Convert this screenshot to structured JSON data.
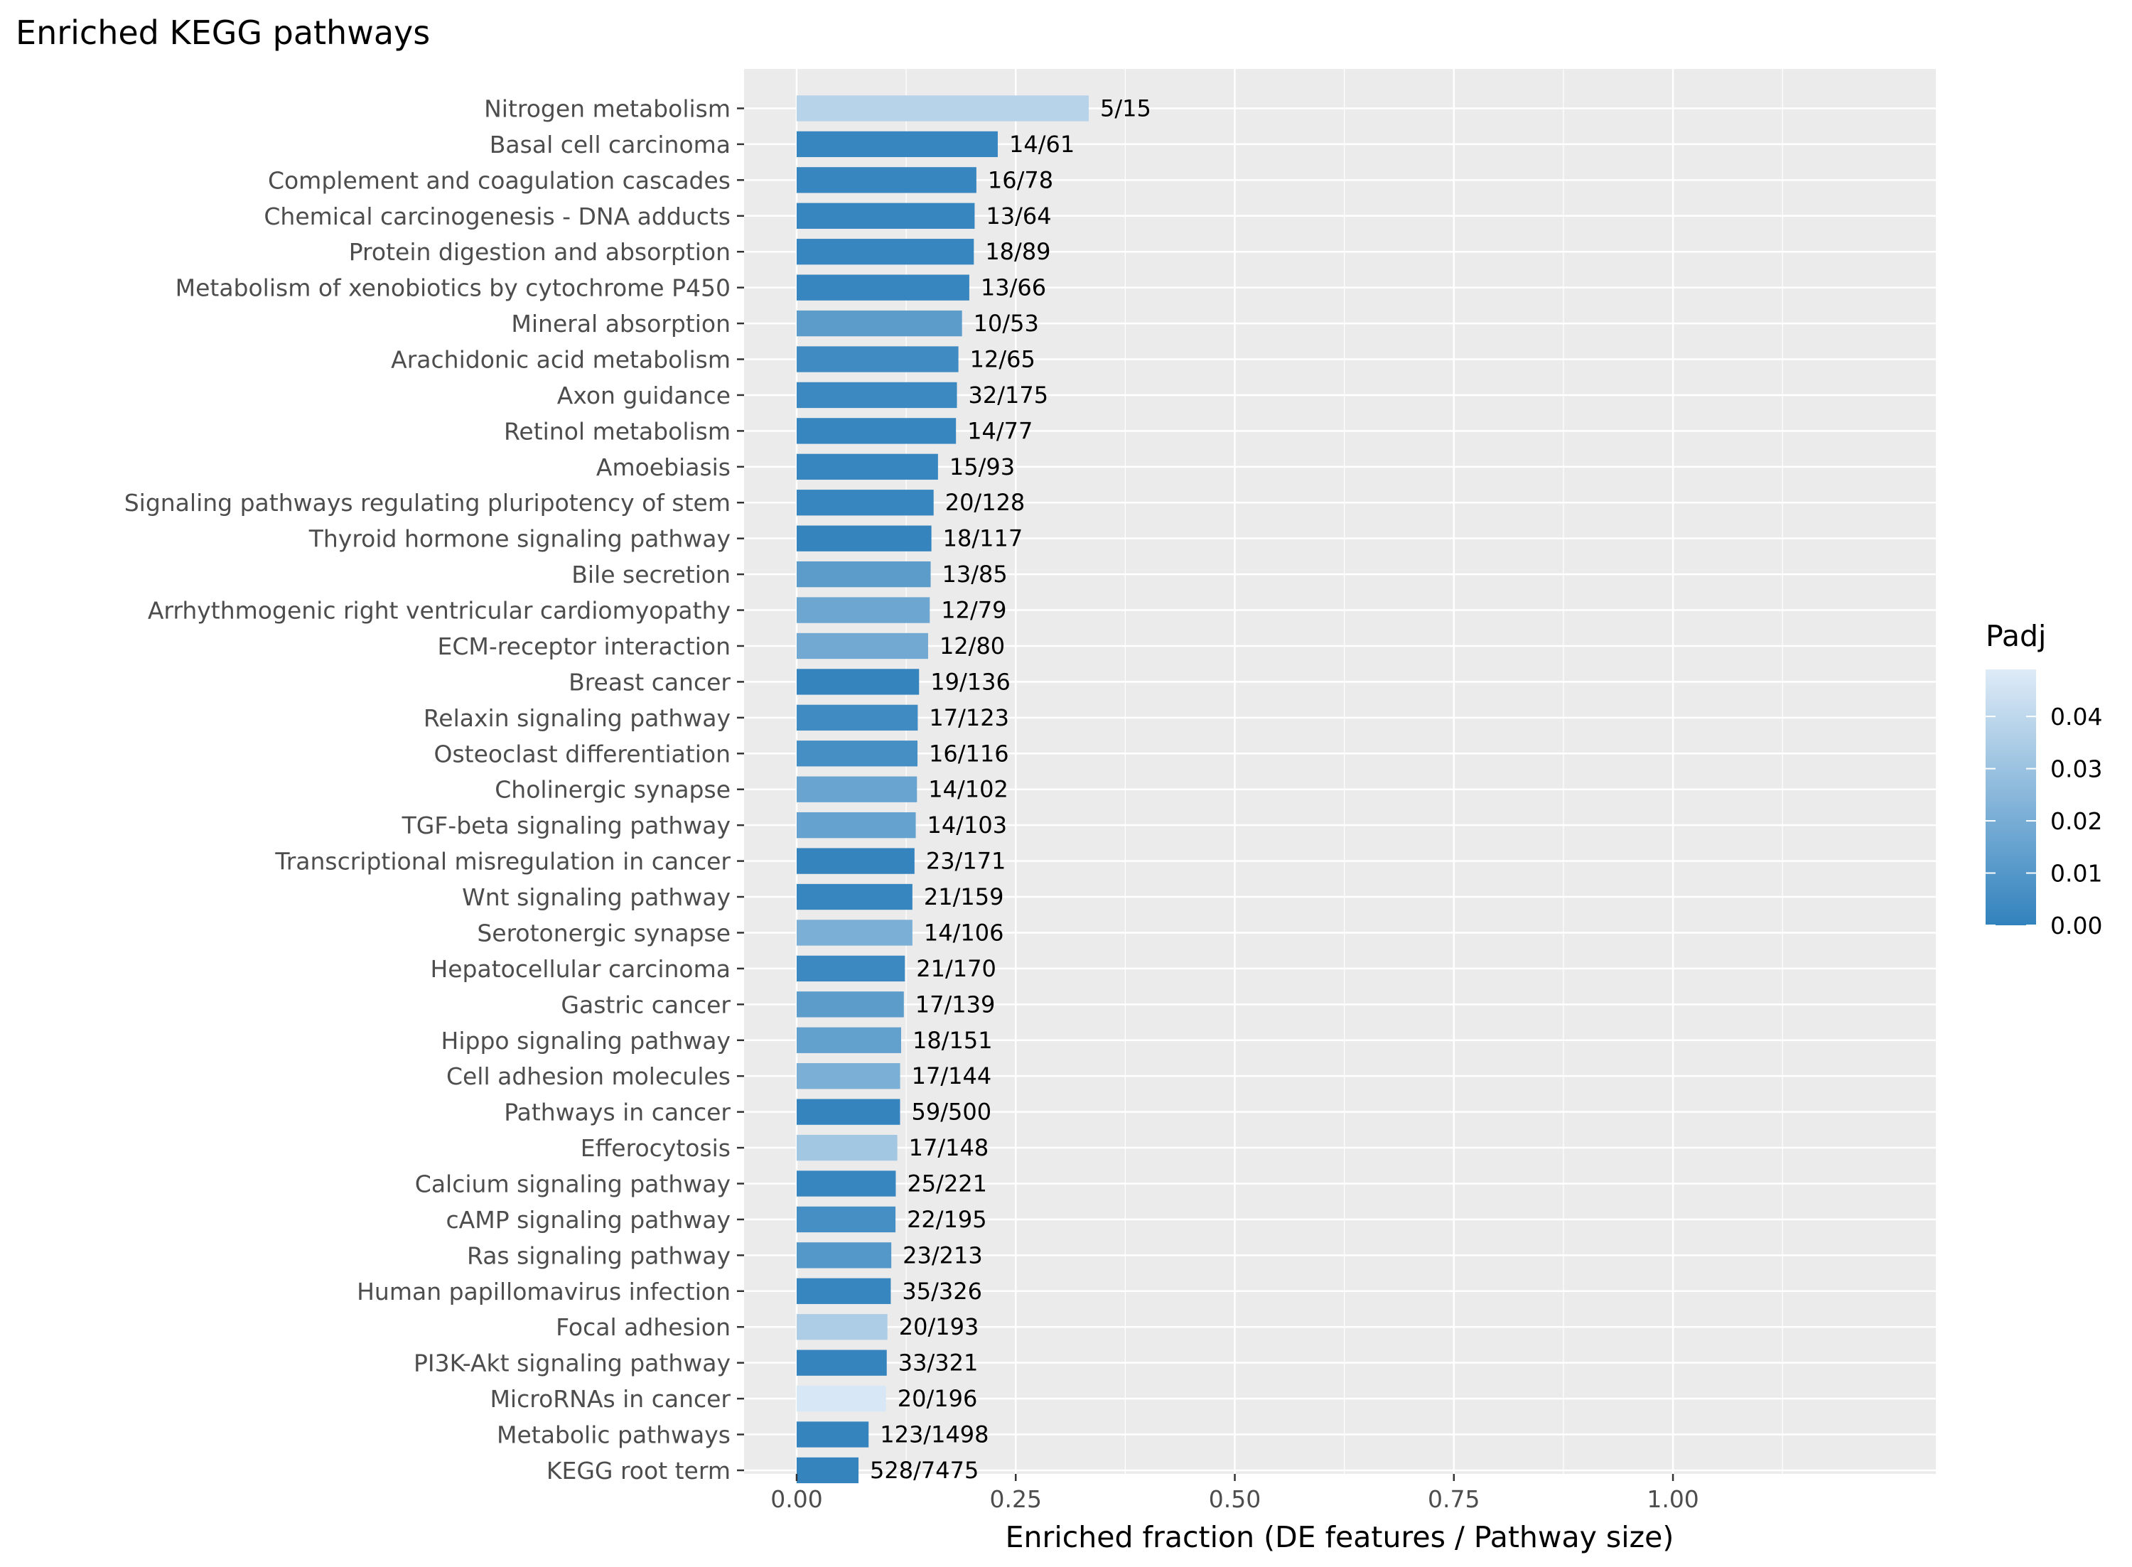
{
  "chart_data": {
    "type": "bar",
    "orientation": "horizontal",
    "title": "Enriched KEGG pathways",
    "xlabel": "Enriched fraction (DE features / Pathway size)",
    "ylabel": "",
    "xlim": [
      -0.06,
      1.3
    ],
    "x_ticks": [
      0,
      0.25,
      0.5,
      0.75,
      1.0
    ],
    "x_tick_labels": [
      "0.00",
      "0.25",
      "0.50",
      "0.75",
      "1.00"
    ],
    "grid": true,
    "legend_position": "right",
    "color_scale": {
      "title": "Padj",
      "low_color": "#3182bd",
      "high_color": "#deebf7",
      "limits": [
        0,
        0.049
      ],
      "breaks": [
        0,
        0.01,
        0.02,
        0.03,
        0.04
      ],
      "break_labels": [
        "0.00",
        "0.01",
        "0.02",
        "0.03",
        "0.04"
      ]
    },
    "categories": [
      "Nitrogen metabolism",
      "Basal cell carcinoma",
      "Complement and coagulation cascades",
      "Chemical carcinogenesis - DNA adducts",
      "Protein digestion and absorption",
      "Metabolism of xenobiotics by cytochrome P450",
      "Mineral absorption",
      "Arachidonic acid metabolism",
      "Axon guidance",
      "Retinol metabolism",
      "Amoebiasis",
      "Signaling pathways regulating pluripotency of stem",
      "Thyroid hormone signaling pathway",
      "Bile secretion",
      "Arrhythmogenic right ventricular cardiomyopathy",
      "ECM-receptor interaction",
      "Breast cancer",
      "Relaxin signaling pathway",
      "Osteoclast differentiation",
      "Cholinergic synapse",
      "TGF-beta signaling pathway",
      "Transcriptional misregulation in cancer",
      "Wnt signaling pathway",
      "Serotonergic synapse",
      "Hepatocellular carcinoma",
      "Gastric cancer",
      "Hippo signaling pathway",
      "Cell adhesion molecules",
      "Pathways in cancer",
      "Efferocytosis",
      "Calcium signaling pathway",
      "cAMP signaling pathway",
      "Ras signaling pathway",
      "Human papillomavirus infection",
      "Focal adhesion",
      "PI3K-Akt signaling pathway",
      "MicroRNAs in cancer",
      "Metabolic pathways",
      "KEGG root term"
    ],
    "values": [
      0.3333,
      0.2295,
      0.2051,
      0.2031,
      0.2022,
      0.197,
      0.1887,
      0.1846,
      0.1829,
      0.1818,
      0.1613,
      0.1563,
      0.1538,
      0.1529,
      0.1519,
      0.15,
      0.1397,
      0.1382,
      0.1379,
      0.1373,
      0.1359,
      0.1345,
      0.1321,
      0.1321,
      0.1235,
      0.1223,
      0.1192,
      0.1181,
      0.118,
      0.1149,
      0.1131,
      0.1128,
      0.108,
      0.1074,
      0.1036,
      0.1028,
      0.102,
      0.0821,
      0.0706
    ],
    "labels": [
      "5/15",
      "14/61",
      "16/78",
      "13/64",
      "18/89",
      "13/66",
      "10/53",
      "12/65",
      "32/175",
      "14/77",
      "15/93",
      "20/128",
      "18/117",
      "13/85",
      "12/79",
      "12/80",
      "19/136",
      "17/123",
      "16/116",
      "14/102",
      "14/103",
      "23/171",
      "21/159",
      "14/106",
      "21/170",
      "17/139",
      "18/151",
      "17/144",
      "59/500",
      "17/148",
      "25/221",
      "22/195",
      "23/213",
      "35/326",
      "20/193",
      "33/321",
      "20/196",
      "123/1498",
      "528/7475"
    ],
    "padj": [
      0.038,
      0.002,
      0.002,
      0.002,
      0.002,
      0.002,
      0.012,
      0.004,
      0.003,
      0.002,
      0.002,
      0.002,
      0.001,
      0.012,
      0.017,
      0.018,
      0.001,
      0.004,
      0.006,
      0.016,
      0.015,
      0.001,
      0.002,
      0.021,
      0.003,
      0.012,
      0.014,
      0.021,
      0.001,
      0.032,
      0.002,
      0.006,
      0.01,
      0.002,
      0.035,
      0.001,
      0.047,
      0.001,
      0.001
    ]
  }
}
